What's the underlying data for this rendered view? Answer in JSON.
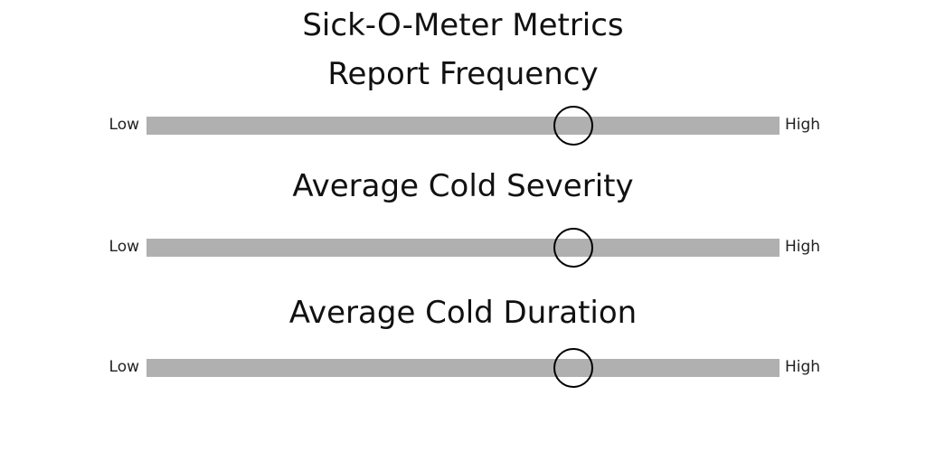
{
  "title": "Sick-O-Meter Metrics",
  "meters": [
    {
      "label": "Report Frequency",
      "low_label": "Low",
      "high_label": "High",
      "value": 0.674
    },
    {
      "label": "Average Cold Severity",
      "low_label": "Low",
      "high_label": "High",
      "value": 0.674
    },
    {
      "label": "Average Cold Duration",
      "low_label": "Low",
      "high_label": "High",
      "value": 0.674
    }
  ],
  "colors": {
    "track": "#b0b0b0",
    "knob_border": "#000000",
    "text": "#111111"
  }
}
